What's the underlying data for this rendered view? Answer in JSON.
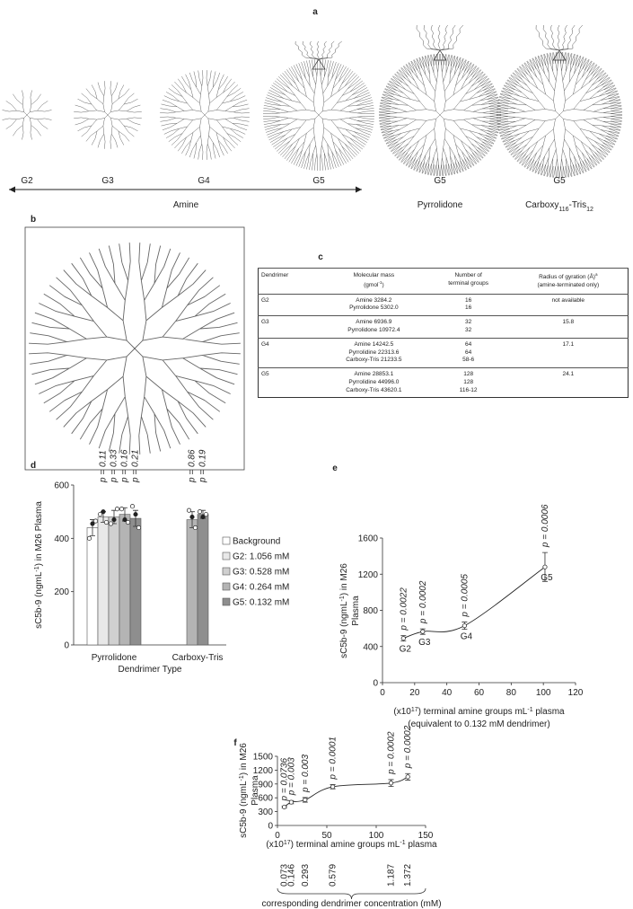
{
  "panel_a": {
    "label": "a",
    "generation_labels": [
      "G2",
      "G3",
      "G4",
      "G5",
      "G5",
      "G5"
    ],
    "group_labels": [
      [
        {
          "text": "Amine"
        }
      ],
      [
        {
          "text": "Pyrrolidone"
        }
      ],
      [
        {
          "text": "Carboxy"
        },
        {
          "sub": "116"
        },
        {
          "text": "-Tris"
        },
        {
          "sub": "12"
        }
      ]
    ]
  },
  "panel_b": {
    "label": "b"
  },
  "panel_c": {
    "label": "c",
    "table": {
      "header": [
        [
          [
            {
              "text": "Dendrimer"
            }
          ]
        ],
        [
          [
            {
              "text": "Molecular mass"
            }
          ],
          [
            {
              "text": "(gmol"
            },
            {
              "sup": "-1"
            },
            {
              "text": ")"
            }
          ]
        ],
        [
          [
            {
              "text": "Number of"
            }
          ],
          [
            {
              "text": "terminal groups"
            }
          ]
        ],
        [
          [
            {
              "text": "Radius of gyration (Å)"
            },
            {
              "sup": "a"
            }
          ],
          [
            {
              "text": "(amine-terminated only)"
            }
          ]
        ]
      ],
      "rows": [
        [
          [
            "G2"
          ],
          [
            "Amine 3284.2",
            "Pyrrolidone 5302.0"
          ],
          [
            "16",
            "16"
          ],
          [
            "not available"
          ]
        ],
        [
          [
            "G3"
          ],
          [
            "Amine 6936.9",
            "Pyrrolidone 10972.4"
          ],
          [
            "32",
            "32"
          ],
          [
            "15.8"
          ]
        ],
        [
          [
            "G4"
          ],
          [
            "Amine 14242.5",
            "Pyrrolidine 22313.6",
            "Carboxy-Tris 21233.5"
          ],
          [
            "64",
            "64",
            "58-6"
          ],
          [
            "17.1"
          ]
        ],
        [
          [
            "G5"
          ],
          [
            "Amine 28853.1",
            "Pyrrolidine 44996.0",
            "Carboxy-Tris 43620.1"
          ],
          [
            "128",
            "128",
            "116-12"
          ],
          [
            "24.1"
          ]
        ]
      ]
    }
  },
  "chart_data": [
    {
      "panel_label": "d",
      "type": "bar",
      "categories": [
        "Pyrrolidone",
        "Carboxy-Tris"
      ],
      "xlabel": [
        [
          {
            "text": "Dendrimer Type"
          }
        ]
      ],
      "ylabel": [
        [
          {
            "text": "sC5b-9 (ngmL"
          },
          {
            "sup": "-1"
          },
          {
            "text": ") in M26 Plasma"
          }
        ]
      ],
      "ylim": [
        0,
        600
      ],
      "yticks": [
        0,
        200,
        400,
        600
      ],
      "series": [
        {
          "name": "Background",
          "color": "#ffffff",
          "values": [
            440,
            null
          ],
          "errors": [
            30,
            null
          ],
          "points": [
            [
              400,
              455,
              465
            ],
            null
          ],
          "p_labels": [
            null,
            null
          ]
        },
        {
          "name": "G2: 1.056 mM",
          "color": "#e8e8e8",
          "values": [
            480,
            null
          ],
          "errors": [
            20,
            null
          ],
          "points": [
            [
              490,
              500,
              460
            ],
            null
          ],
          "p_labels": [
            "p = 0.11",
            null
          ]
        },
        {
          "name": "G3: 0.528 mM",
          "color": "#d0d0d0",
          "values": [
            480,
            null
          ],
          "errors": [
            25,
            null
          ],
          "points": [
            [
              455,
              470,
              510
            ],
            null
          ],
          "p_labels": [
            "p = 0.33",
            null
          ]
        },
        {
          "name": "G4: 0.264 mM",
          "color": "#b4b4b4",
          "values": [
            490,
            470
          ],
          "errors": [
            25,
            30
          ],
          "points": [
            [
              510,
              470,
              460
            ],
            [
              505,
              480,
              440
            ]
          ],
          "p_labels": [
            "p = 0.16",
            "p = 0.86"
          ]
        },
        {
          "name": "G5: 0.132 mM",
          "color": "#8e8e8e",
          "values": [
            475,
            490
          ],
          "errors": [
            30,
            15
          ],
          "points": [
            [
              520,
              490,
              440
            ],
            [
              500,
              480,
              490
            ]
          ],
          "p_labels": [
            "p = 0.21",
            "p = 0.19"
          ]
        }
      ]
    },
    {
      "panel_label": "e",
      "type": "scatter",
      "trendline": true,
      "x": [
        13,
        25,
        51,
        101
      ],
      "values": [
        490,
        565,
        630,
        1280
      ],
      "errors": [
        30,
        30,
        40,
        160
      ],
      "point_labels": [
        "G2",
        "G3",
        "G4",
        "G5"
      ],
      "p_labels": [
        "p = 0.0022",
        "p = 0.0002",
        "p = 0.0005",
        "p = 0.0006"
      ],
      "xlabel": [
        [
          {
            "text": "(x10"
          },
          {
            "sup": "17"
          },
          {
            "text": ") terminal amine groups mL"
          },
          {
            "sup": "-1"
          },
          {
            "text": " plasma"
          }
        ],
        [
          {
            "text": "(equivalent to 0.132 mM dendrimer)"
          }
        ]
      ],
      "ylabel": [
        [
          {
            "text": "sC5b-9 (ngmL"
          },
          {
            "sup": "-1"
          },
          {
            "text": ") in M26"
          }
        ],
        [
          {
            "text": "Plasma"
          }
        ]
      ],
      "xlim": [
        0,
        120
      ],
      "xticks": [
        0,
        20,
        40,
        60,
        80,
        100,
        120
      ],
      "ylim": [
        0,
        1600
      ],
      "yticks": [
        0,
        400,
        800,
        1200,
        1600
      ]
    },
    {
      "panel_label": "f",
      "type": "scatter",
      "trendline": true,
      "x": [
        7,
        14,
        28,
        56,
        115,
        132
      ],
      "values": [
        400,
        505,
        555,
        840,
        920,
        1055
      ],
      "errors": [
        20,
        35,
        50,
        45,
        75,
        70
      ],
      "p_labels": [
        "p = 0.0736",
        "p = 0.003",
        "p = 0.003",
        "p = 0.0001",
        "p = 0.0002",
        "p = 0.0002"
      ],
      "concentration_labels": [
        "0.073",
        "0.146",
        "0.293",
        "0.579",
        "1.187",
        "1.372"
      ],
      "concentration_title": "corresponding dendrimer concentration (mM)",
      "xlabel": [
        [
          {
            "text": "(x10"
          },
          {
            "sup": "17"
          },
          {
            "text": ") terminal amine groups mL"
          },
          {
            "sup": "-1"
          },
          {
            "text": " plasma"
          }
        ]
      ],
      "ylabel": [
        [
          {
            "text": "sC5b-9 (ngmL"
          },
          {
            "sup": "-1"
          },
          {
            "text": ") in M26"
          }
        ],
        [
          {
            "text": "Plasma"
          }
        ]
      ],
      "xlim": [
        0,
        150
      ],
      "xticks": [
        0,
        50,
        100,
        150
      ],
      "ylim": [
        0,
        1500
      ],
      "yticks": [
        0,
        300,
        600,
        900,
        1200,
        1500
      ]
    }
  ]
}
